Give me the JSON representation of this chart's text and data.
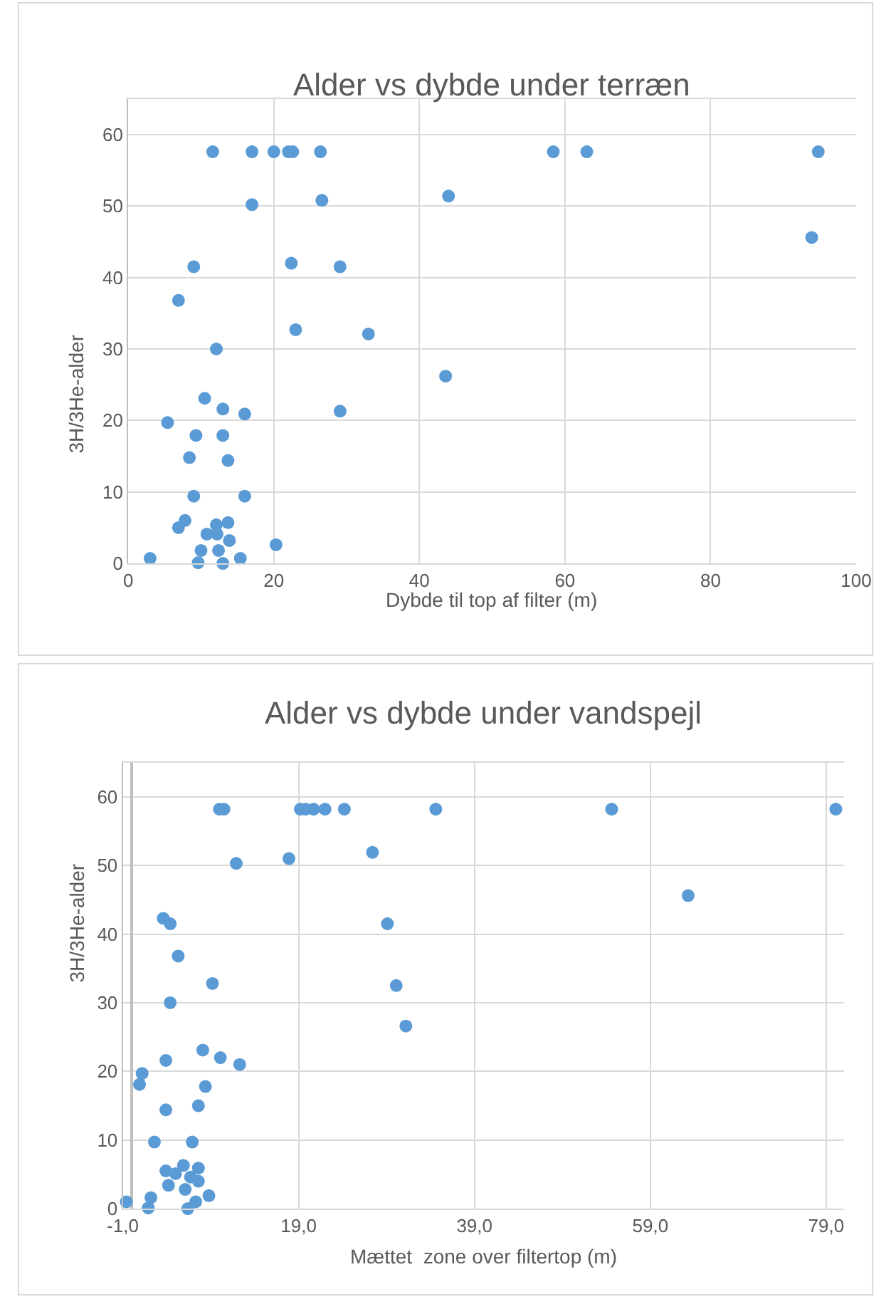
{
  "chart_data": [
    {
      "type": "scatter",
      "title": "Alder vs dybde under terræn",
      "xlabel": "Dybde til top af filter (m)",
      "ylabel": "3H/3He-alder",
      "marker": "circle",
      "grid": true,
      "xlim": [
        0,
        100
      ],
      "xticks": [
        0,
        20,
        40,
        60,
        80,
        100
      ],
      "ylim": [
        0,
        65
      ],
      "yticks": [
        0,
        10,
        20,
        30,
        40,
        50,
        60
      ],
      "series": [
        {
          "color": "#5b9bd5",
          "x": [
            11.6,
            17.0,
            20.0,
            22.0,
            22.6,
            26.4,
            17.0,
            26.6,
            44.0,
            9.0,
            22.4,
            29.1,
            6.9,
            23.0,
            33.0,
            12.1,
            43.6,
            10.5,
            13.0,
            16.0,
            29.1,
            5.4,
            9.3,
            13.0,
            8.4,
            13.7,
            9.0,
            16.0,
            7.8,
            6.9,
            12.1,
            13.7,
            10.8,
            12.2,
            13.9,
            20.3,
            10.0,
            12.4,
            3.0,
            9.6,
            13.0,
            15.4,
            58.4,
            63.0,
            94.8,
            93.9
          ],
          "values": [
            57.6,
            57.6,
            57.6,
            57.6,
            57.6,
            57.6,
            50.2,
            50.8,
            51.4,
            41.5,
            42.0,
            41.5,
            36.8,
            32.7,
            32.1,
            30.0,
            26.2,
            23.1,
            21.6,
            20.9,
            21.3,
            19.7,
            17.9,
            17.9,
            14.8,
            14.4,
            9.4,
            9.4,
            6.0,
            5.0,
            5.4,
            5.7,
            4.1,
            4.1,
            3.2,
            2.6,
            1.8,
            1.8,
            0.7,
            0.1,
            0.0,
            0.7,
            57.6,
            57.6,
            57.6,
            45.6
          ]
        }
      ]
    },
    {
      "type": "scatter",
      "title": "Alder vs dybde under vandspejl",
      "xlabel": "Mættet  zone over filtertop (m)",
      "ylabel": "3H/3He-alder",
      "marker": "circle",
      "grid": true,
      "xlim": [
        -1,
        81
      ],
      "xticks": [
        {
          "value": -1,
          "label": "-1,0"
        },
        {
          "value": 19,
          "label": "19,0"
        },
        {
          "value": 39,
          "label": "39,0"
        },
        {
          "value": 59,
          "label": "59,0"
        },
        {
          "value": 79,
          "label": "79,0"
        }
      ],
      "ylim": [
        0,
        65
      ],
      "yticks": [
        0,
        10,
        20,
        30,
        40,
        50,
        60
      ],
      "series": [
        {
          "color": "#5b9bd5",
          "x": [
            -0.6,
            1.9,
            2.2,
            1.2,
            0.9,
            2.6,
            3.9,
            3.9,
            3.6,
            4.4,
            5.3,
            4.4,
            3.9,
            4.2,
            5.0,
            5.9,
            6.1,
            6.4,
            6.7,
            6.9,
            7.3,
            7.6,
            7.6,
            7.6,
            8.1,
            8.4,
            8.8,
            9.2,
            10.0,
            10.5,
            10.1,
            11.9,
            12.3,
            17.9,
            19.2,
            19.8,
            20.7,
            22.0,
            24.2,
            27.4,
            29.1,
            30.1,
            31.2,
            34.6,
            54.6,
            80.1,
            63.3
          ],
          "values": [
            1.0,
            0.1,
            1.6,
            19.7,
            18.1,
            9.7,
            21.6,
            14.4,
            42.3,
            41.5,
            36.8,
            30.0,
            5.5,
            3.4,
            5.1,
            6.3,
            2.8,
            0.0,
            4.6,
            9.7,
            1.0,
            5.9,
            4.0,
            15.0,
            23.1,
            17.8,
            1.9,
            32.8,
            58.2,
            58.2,
            22.0,
            50.3,
            21.0,
            51.0,
            58.2,
            58.2,
            58.2,
            58.2,
            58.2,
            51.9,
            41.5,
            32.5,
            26.6,
            58.2,
            58.2,
            58.2,
            45.6
          ]
        }
      ]
    }
  ]
}
